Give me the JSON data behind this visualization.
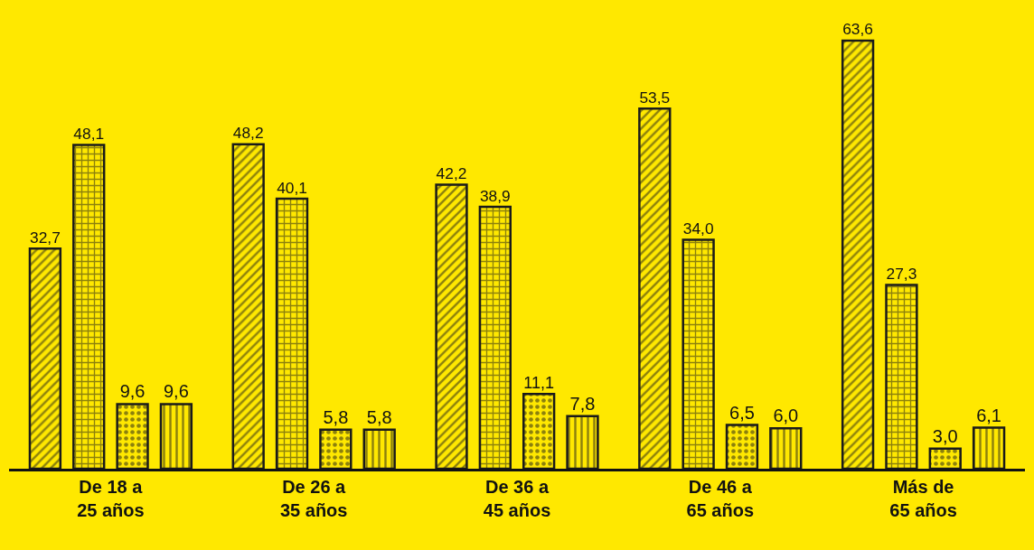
{
  "chart_data": {
    "type": "bar",
    "categories": [
      "De 18 a\n25 años",
      "De 26 a\n35 años",
      "De 36 a\n45 años",
      "De 46 a\n65 años",
      "Más de\n65 años"
    ],
    "series": [
      {
        "color": "#1a1a1a",
        "values": [
          32.7,
          48.2,
          42.2,
          53.5,
          63.6
        ],
        "value_labels": [
          "32,7",
          "48,2",
          "42,2",
          "53,5",
          "63,6"
        ]
      },
      {
        "color": "#1a1a1a",
        "values": [
          48.1,
          40.1,
          38.9,
          34.0,
          27.3
        ],
        "value_labels": [
          "48,1",
          "40,1",
          "38,9",
          "34,0",
          "27,3"
        ]
      },
      {
        "color": "#1a1a1a",
        "values": [
          9.6,
          5.8,
          11.1,
          6.5,
          3.0
        ],
        "value_labels": [
          "9,6",
          "5,8",
          "11,1",
          "6,5",
          "3,0"
        ]
      },
      {
        "color": "#1a1a1a",
        "values": [
          9.6,
          5.8,
          7.8,
          6.0,
          6.1
        ],
        "value_labels": [
          "9,6",
          "5,8",
          "7,8",
          "6,0",
          "6,1"
        ]
      }
    ],
    "grid": false,
    "legend": false,
    "tick_labels": "x"
  }
}
